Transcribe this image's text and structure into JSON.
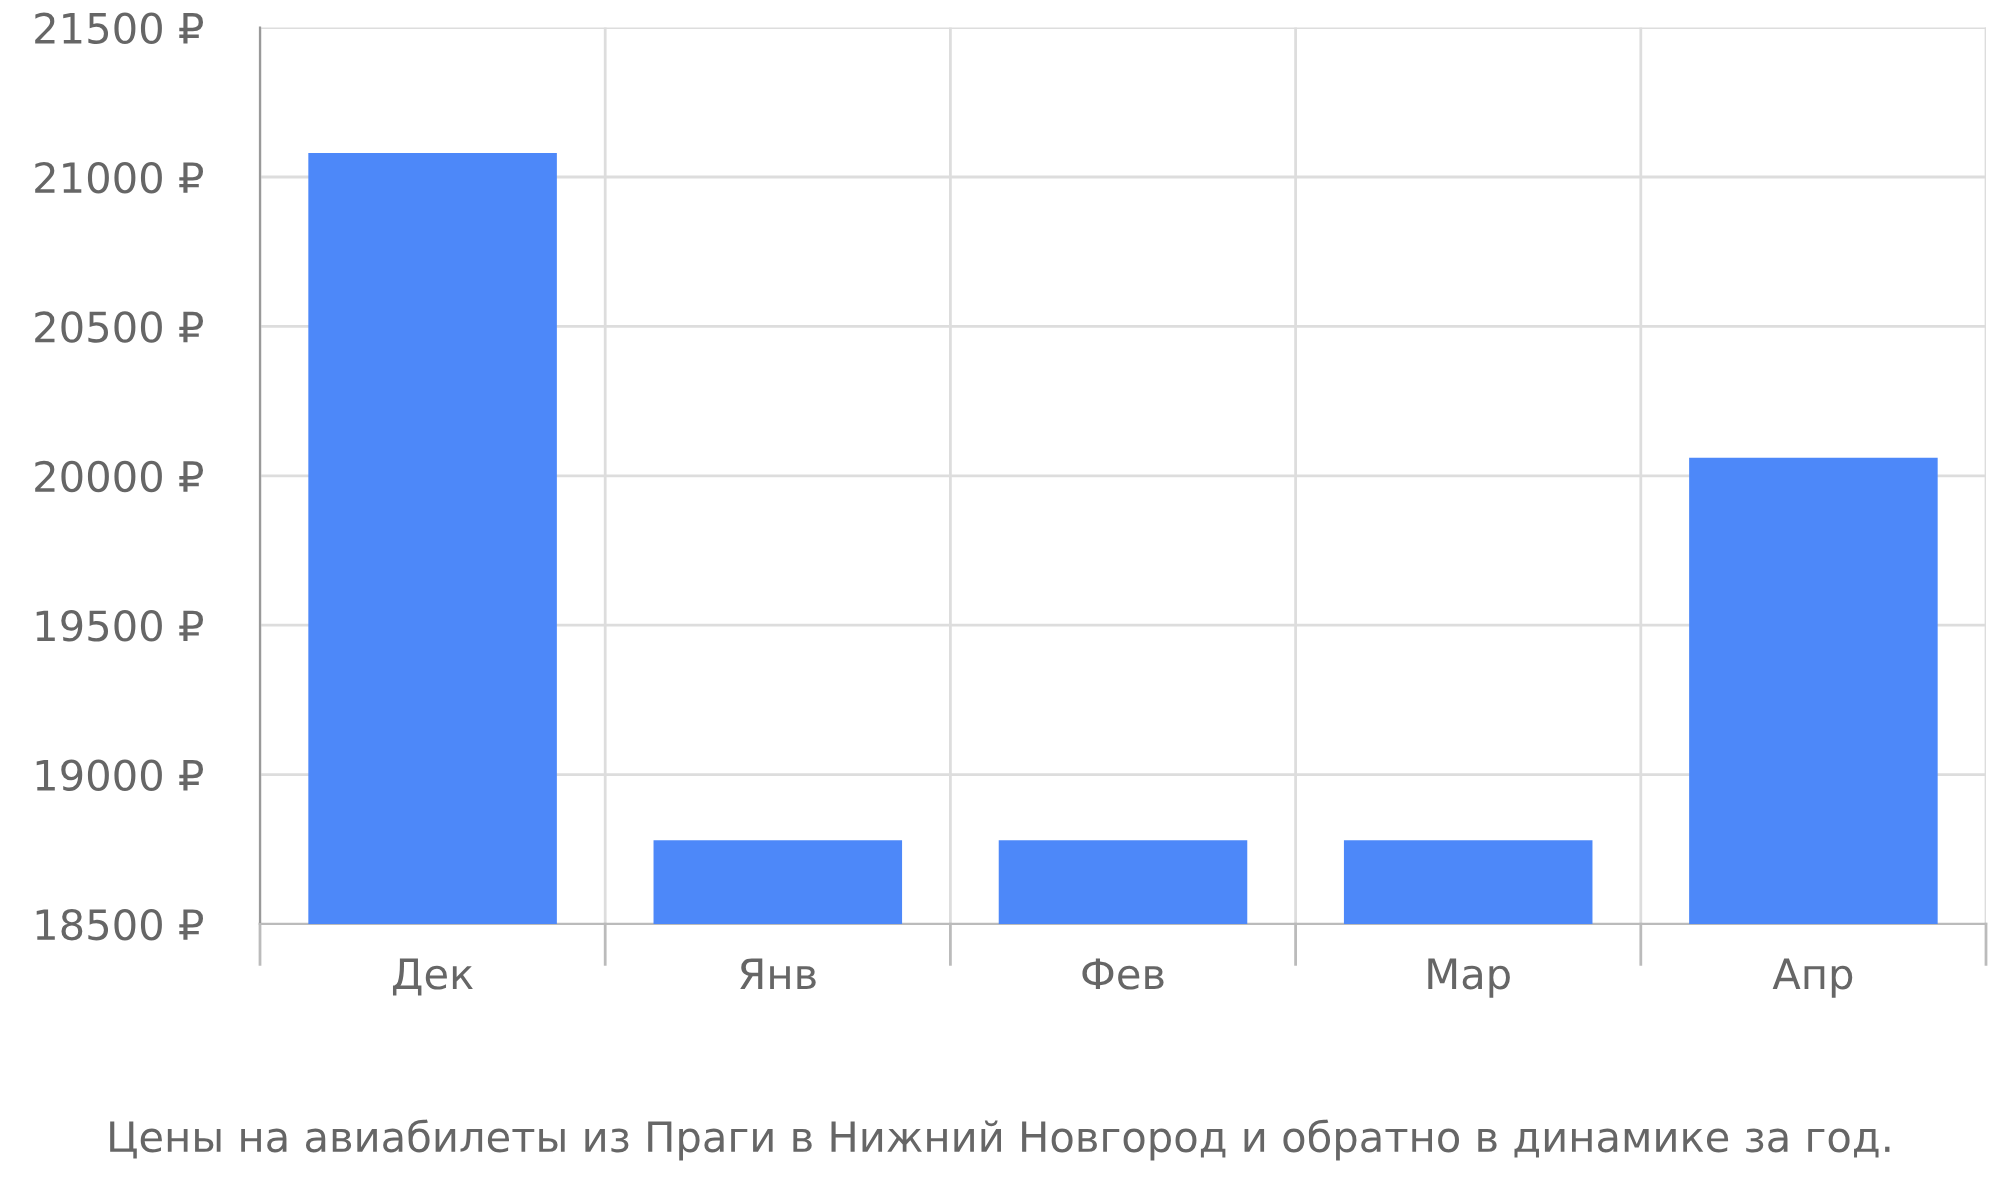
{
  "chart_data": {
    "type": "bar",
    "categories": [
      "Дек",
      "Янв",
      "Фев",
      "Мар",
      "Апр"
    ],
    "values": [
      21080,
      18780,
      18780,
      18780,
      20060
    ],
    "color": "#4d88f9",
    "ylim": [
      18500,
      21500
    ],
    "yticks": [
      {
        "value": 18500,
        "label": "18500 ₽"
      },
      {
        "value": 19000,
        "label": "19000 ₽"
      },
      {
        "value": 19500,
        "label": "19500 ₽"
      },
      {
        "value": 20000,
        "label": "20000 ₽"
      },
      {
        "value": 20500,
        "label": "20500 ₽"
      },
      {
        "value": 21000,
        "label": "21000 ₽"
      },
      {
        "value": 21500,
        "label": "21500 ₽"
      }
    ],
    "grid": true,
    "annotations": [
      "Цены на авиабилеты из Праги в Нижний Новгород и обратно в динамике за год."
    ]
  }
}
